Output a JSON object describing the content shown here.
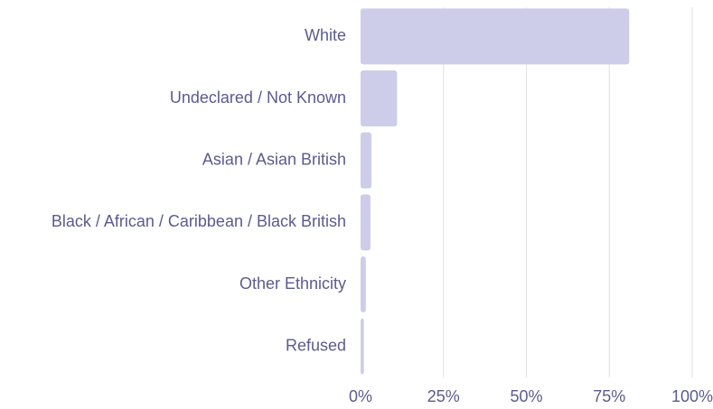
{
  "chart_data": {
    "type": "hbar",
    "categories": [
      "White",
      "Undeclared / Not Known",
      "Asian / Asian British",
      "Black / African / Caribbean / Black British",
      "Other Ethnicity",
      "Refused"
    ],
    "values": [
      81,
      11,
      3.3,
      3,
      1.6,
      1
    ],
    "color": "#cdcdea",
    "xlim": [
      0,
      100
    ],
    "xticks": [
      {
        "value": 0,
        "label": "0%"
      },
      {
        "value": 25,
        "label": "25%"
      },
      {
        "value": 50,
        "label": "50%"
      },
      {
        "value": 75,
        "label": "75%"
      },
      {
        "value": 100,
        "label": "100%"
      }
    ],
    "grid": true
  }
}
